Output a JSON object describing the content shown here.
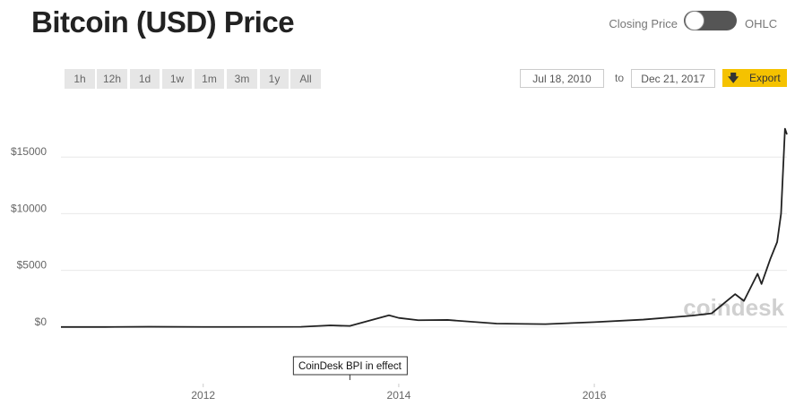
{
  "header": {
    "title": "Bitcoin (USD) Price"
  },
  "controls": {
    "toggle_left": "Closing Price",
    "toggle_right": "OHLC",
    "ranges": [
      "1h",
      "12h",
      "1d",
      "1w",
      "1m",
      "3m",
      "1y",
      "All"
    ],
    "date_from": "Jul 18, 2010",
    "date_to_label": "to",
    "date_to": "Dec 21, 2017",
    "export": "Export"
  },
  "watermark": "coindesk",
  "chart_data": {
    "type": "line",
    "color": "#222222",
    "x": [
      2010.545,
      2011.0,
      2011.45,
      2012.0,
      2013.0,
      2013.3,
      2013.5,
      2013.9,
      2014.0,
      2014.2,
      2014.5,
      2015.0,
      2015.5,
      2016.0,
      2016.5,
      2017.0,
      2017.2,
      2017.44,
      2017.53,
      2017.67,
      2017.71,
      2017.8,
      2017.87,
      2017.91,
      2017.95,
      2017.97
    ],
    "values": [
      0,
      0.3,
      18,
      5,
      13,
      140,
      90,
      1030,
      800,
      600,
      620,
      300,
      250,
      430,
      650,
      1000,
      1200,
      2900,
      2300,
      4700,
      3800,
      6000,
      7500,
      10000,
      17500,
      17000
    ],
    "xlim": [
      2010.545,
      2017.97
    ],
    "xticks": [
      2012,
      2014,
      2016
    ],
    "ylim": [
      -5000,
      20000
    ],
    "yticks": [
      {
        "value": 0,
        "label": "$0"
      },
      {
        "value": 5000,
        "label": "$5000"
      },
      {
        "value": 10000,
        "label": "$10000"
      },
      {
        "value": 15000,
        "label": "$15000"
      }
    ],
    "grid": true,
    "annotations": [
      {
        "text": "CoinDesk BPI in effect",
        "x": 2013.5
      }
    ]
  }
}
